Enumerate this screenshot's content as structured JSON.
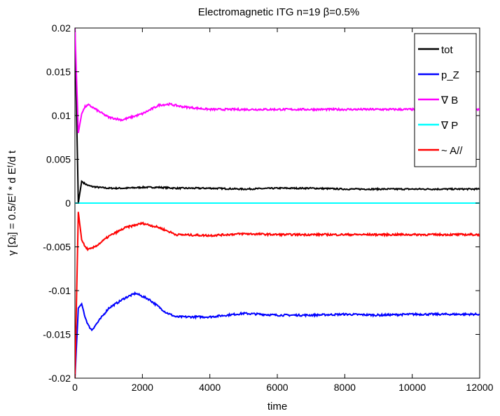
{
  "chart_data": {
    "type": "line",
    "title": "Electromagnetic ITG n=19 β=0.5%",
    "xlabel": "time",
    "ylabel": "γ [Ωᵢ] = 0.5/Eᶠ * d Eᶠ/d t",
    "xlim": [
      0,
      12000
    ],
    "ylim": [
      -0.02,
      0.02
    ],
    "xticks": [
      0,
      2000,
      4000,
      6000,
      8000,
      10000,
      12000
    ],
    "xtick_labels": [
      "0",
      "2000",
      "4000",
      "6000",
      "8000",
      "10000",
      "12000"
    ],
    "yticks": [
      -0.02,
      -0.015,
      -0.01,
      -0.005,
      0,
      0.005,
      0.01,
      0.015,
      0.02
    ],
    "ytick_labels": [
      "-0.02",
      "-0.015",
      "-0.01",
      "-0.005",
      "0",
      "0.005",
      "0.01",
      "0.015",
      "0.02"
    ],
    "grid": false,
    "legend_position": "top-right",
    "series": [
      {
        "name": "tot",
        "color": "#000000",
        "x": [
          0,
          100,
          200,
          300,
          400,
          500,
          700,
          1000,
          1500,
          2000,
          2500,
          3000,
          4000,
          5000,
          6000,
          7000,
          8000,
          9000,
          10000,
          11000,
          12000
        ],
        "values": [
          0.02,
          0.0,
          0.0025,
          0.0022,
          0.002,
          0.0019,
          0.0018,
          0.0017,
          0.0017,
          0.0018,
          0.0018,
          0.0017,
          0.0017,
          0.0016,
          0.0017,
          0.0017,
          0.0016,
          0.0016,
          0.0016,
          0.0016,
          0.0016
        ]
      },
      {
        "name": "p_Z",
        "color": "#0000ff",
        "x": [
          0,
          100,
          200,
          300,
          400,
          500,
          700,
          1000,
          1500,
          1800,
          2200,
          2700,
          3000,
          4000,
          5000,
          6000,
          7000,
          8000,
          9000,
          10000,
          11000,
          12000
        ],
        "values": [
          -0.02,
          -0.012,
          -0.0115,
          -0.013,
          -0.014,
          -0.0145,
          -0.0135,
          -0.012,
          -0.0108,
          -0.0103,
          -0.011,
          -0.0125,
          -0.013,
          -0.013,
          -0.0126,
          -0.0128,
          -0.0128,
          -0.0127,
          -0.0128,
          -0.0127,
          -0.0127,
          -0.0127
        ]
      },
      {
        "name": "∇ B",
        "color": "#ff00ff",
        "x": [
          0,
          100,
          200,
          300,
          400,
          500,
          700,
          1000,
          1400,
          2000,
          2500,
          2800,
          3200,
          4000,
          5000,
          6000,
          7000,
          8000,
          9000,
          10000,
          11000,
          12000
        ],
        "values": [
          0.02,
          0.008,
          0.0102,
          0.011,
          0.0112,
          0.011,
          0.0105,
          0.0098,
          0.0095,
          0.0102,
          0.0112,
          0.0113,
          0.011,
          0.0107,
          0.0107,
          0.0107,
          0.0107,
          0.0107,
          0.0107,
          0.0107,
          0.0107,
          0.0107
        ]
      },
      {
        "name": "∇ P",
        "color": "#00ffff",
        "x": [
          0,
          12000
        ],
        "values": [
          0,
          0
        ]
      },
      {
        "name": "~ A//",
        "color": "#ff0000",
        "x": [
          0,
          100,
          200,
          300,
          400,
          500,
          700,
          1000,
          1500,
          2000,
          2500,
          3000,
          4000,
          5000,
          6000,
          7000,
          8000,
          9000,
          10000,
          11000,
          12000
        ],
        "values": [
          -0.02,
          -0.001,
          -0.0042,
          -0.005,
          -0.0053,
          -0.0052,
          -0.0047,
          -0.0038,
          -0.0028,
          -0.0023,
          -0.0028,
          -0.0036,
          -0.0037,
          -0.0035,
          -0.0036,
          -0.0036,
          -0.0036,
          -0.0036,
          -0.0036,
          -0.0036,
          -0.0036
        ]
      }
    ]
  }
}
